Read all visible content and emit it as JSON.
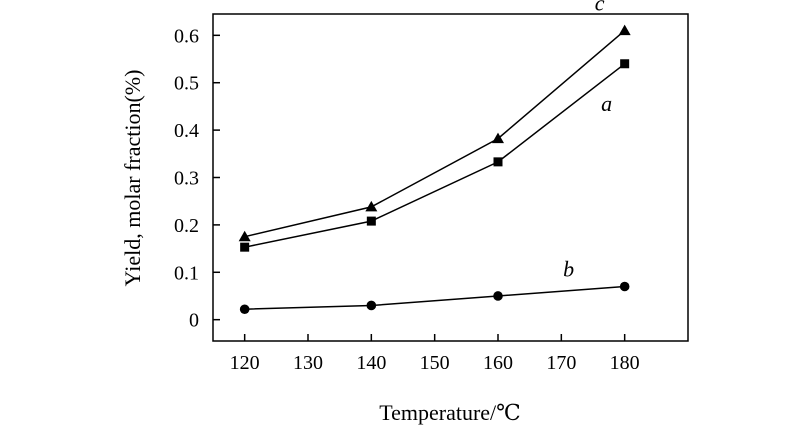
{
  "chart_data": {
    "type": "line",
    "title": "",
    "xlabel": "Temperature/℃",
    "ylabel": "Yield, molar fraction(%)",
    "x": [
      120,
      140,
      160,
      180
    ],
    "x_ticks": [
      "120",
      "130",
      "140",
      "150",
      "160",
      "170",
      "180"
    ],
    "y_ticks": [
      "0",
      "0.1",
      "0.2",
      "0.3",
      "0.4",
      "0.5",
      "0.6"
    ],
    "xlim": [
      115,
      190
    ],
    "ylim": [
      -0.045,
      0.645
    ],
    "grid": false,
    "series": [
      {
        "name": "c",
        "marker": "triangle",
        "values": [
          0.175,
          0.238,
          0.382,
          0.61
        ]
      },
      {
        "name": "a",
        "marker": "square",
        "values": [
          0.153,
          0.208,
          0.333,
          0.54
        ]
      },
      {
        "name": "b",
        "marker": "circle",
        "values": [
          0.022,
          0.03,
          0.05,
          0.07
        ]
      }
    ]
  }
}
